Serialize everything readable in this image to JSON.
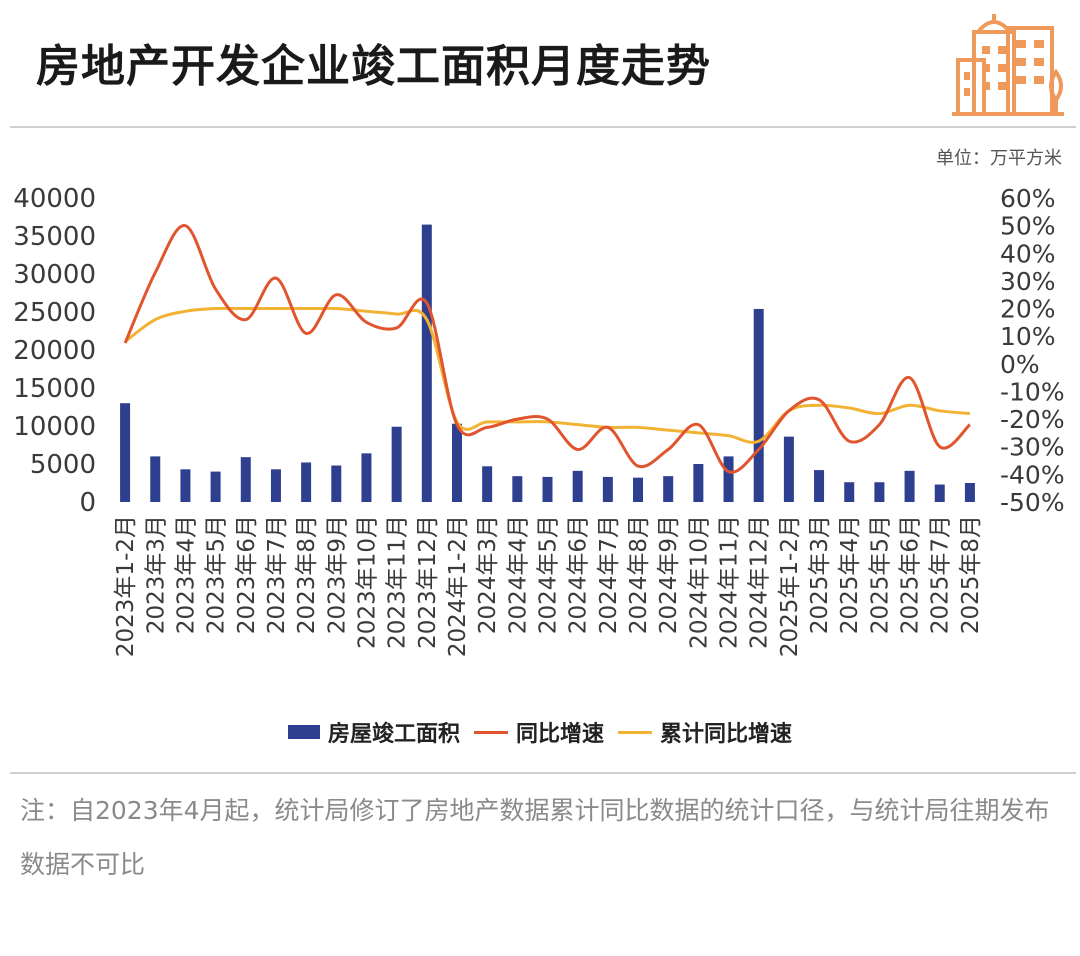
{
  "header": {
    "title": "房地产开发企业竣工面积月度走势",
    "unit": "单位：万平方米"
  },
  "colors": {
    "bar": "#2e3f8f",
    "yoy": "#e0552e",
    "cumulative": "#f2b233",
    "logo": "#ef9a5a",
    "axis_text": "#3a3a3a"
  },
  "chart_data": {
    "type": "bar",
    "categories": [
      "2023年1-2月",
      "2023年3月",
      "2023年4月",
      "2023年5月",
      "2023年6月",
      "2023年7月",
      "2023年8月",
      "2023年9月",
      "2023年10月",
      "2023年11月",
      "2023年12月",
      "2024年1-2月",
      "2024年3月",
      "2024年4月",
      "2024年5月",
      "2024年6月",
      "2024年7月",
      "2024年8月",
      "2024年9月",
      "2024年10月",
      "2024年11月",
      "2024年12月",
      "2025年1-2月",
      "2025年3月",
      "2025年4月",
      "2025年5月",
      "2025年6月",
      "2025年7月",
      "2025年8月"
    ],
    "series": [
      {
        "name": "房屋竣工面积",
        "type": "bar",
        "axis": "left",
        "values": [
          13000,
          6000,
          4300,
          4000,
          5900,
          4300,
          5200,
          4800,
          6400,
          9900,
          36500,
          10300,
          4700,
          3400,
          3300,
          4100,
          3300,
          3200,
          3400,
          5000,
          6000,
          25400,
          8600,
          4200,
          2600,
          2600,
          4100,
          2300,
          2500
        ]
      },
      {
        "name": "同比增速",
        "type": "line",
        "axis": "right",
        "values": [
          7.5,
          33,
          50,
          27,
          16,
          31,
          11,
          25,
          15,
          13,
          22,
          -22,
          -23,
          -20,
          -20,
          -31,
          -23,
          -37,
          -31,
          -22,
          -39,
          -31,
          -17,
          -13,
          -28,
          -22,
          -5,
          -30,
          -22
        ]
      },
      {
        "name": "累计同比增速",
        "type": "line",
        "axis": "right",
        "values": [
          8,
          16,
          19,
          20,
          20,
          20,
          20,
          20,
          19,
          18,
          16,
          -21,
          -21,
          -21,
          -21,
          -22,
          -23,
          -23,
          -24,
          -25,
          -26,
          -28,
          -17,
          -15,
          -16,
          -18,
          -15,
          -17,
          -18
        ]
      }
    ],
    "y_left": {
      "min": 0,
      "max": 40000,
      "ticks": [
        "0",
        "5000",
        "10000",
        "15000",
        "20000",
        "25000",
        "30000",
        "35000",
        "40000"
      ]
    },
    "y_right": {
      "min": -50,
      "max": 60,
      "ticks": [
        "-50%",
        "-40%",
        "-30%",
        "-20%",
        "-10%",
        "0%",
        "10%",
        "20%",
        "30%",
        "40%",
        "50%",
        "60%"
      ]
    },
    "grid": false,
    "legend": "bottom"
  },
  "legend": {
    "bar_label": "房屋竣工面积",
    "yoy_label": "同比增速",
    "cumulative_label": "累计同比增速"
  },
  "note": {
    "text": "注：自2023年4月起，统计局修订了房地产数据累计同比数据的统计口径，与统计局往期发布数据不可比"
  }
}
